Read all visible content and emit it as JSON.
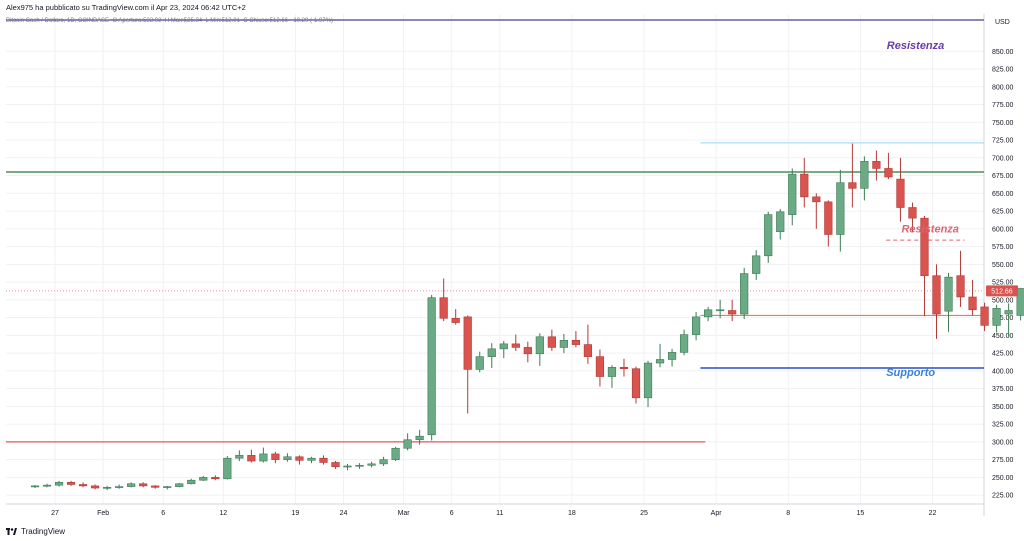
{
  "header": {
    "published": "Alex975 ha pubblicato su TradingView.com il Apr 23, 2024 06:42 UTC+2"
  },
  "symbol_line": {
    "symbol": "Bitcoin Cash / Dollaro, 1D, COINBASE",
    "open": "O Apertura:522.92",
    "high": "H Max:525.34",
    "low": "L Min:512.01",
    "close": "C Chiuso:512.66",
    "change": "-10.29 (-1.97%)"
  },
  "footer": {
    "brand": "TradingView"
  },
  "chart_data": {
    "type": "candlestick",
    "currency": "USD",
    "price_label": "512.66",
    "ylim": [
      212.5,
      902.5
    ],
    "yticks": [
      225,
      250,
      275,
      300,
      325,
      350,
      375,
      400,
      425,
      450,
      475,
      500,
      525,
      550,
      575,
      600,
      625,
      650,
      675,
      700,
      725,
      750,
      775,
      800,
      825,
      850
    ],
    "xticks": [
      "27",
      "Feb",
      "6",
      "12",
      "19",
      "24",
      "Mar",
      "6",
      "11",
      "18",
      "25",
      "Apr",
      "8",
      "15",
      "22"
    ],
    "candles": [
      {
        "o": 237,
        "h": 239,
        "l": 235,
        "c": 238
      },
      {
        "o": 238,
        "h": 241,
        "l": 236,
        "c": 239
      },
      {
        "o": 239,
        "h": 245,
        "l": 237,
        "c": 243
      },
      {
        "o": 243,
        "h": 245,
        "l": 238,
        "c": 240
      },
      {
        "o": 240,
        "h": 243,
        "l": 236,
        "c": 238
      },
      {
        "o": 238,
        "h": 240,
        "l": 233,
        "c": 235
      },
      {
        "o": 235,
        "h": 238,
        "l": 232,
        "c": 236
      },
      {
        "o": 236,
        "h": 240,
        "l": 234,
        "c": 237
      },
      {
        "o": 237,
        "h": 243,
        "l": 236,
        "c": 241
      },
      {
        "o": 241,
        "h": 243,
        "l": 236,
        "c": 238
      },
      {
        "o": 238,
        "h": 239,
        "l": 234,
        "c": 236
      },
      {
        "o": 236,
        "h": 238,
        "l": 233,
        "c": 237
      },
      {
        "o": 237,
        "h": 242,
        "l": 236,
        "c": 241
      },
      {
        "o": 241,
        "h": 248,
        "l": 240,
        "c": 246
      },
      {
        "o": 246,
        "h": 252,
        "l": 245,
        "c": 250
      },
      {
        "o": 250,
        "h": 253,
        "l": 246,
        "c": 248
      },
      {
        "o": 248,
        "h": 280,
        "l": 247,
        "c": 277
      },
      {
        "o": 277,
        "h": 288,
        "l": 273,
        "c": 281
      },
      {
        "o": 281,
        "h": 289,
        "l": 271,
        "c": 273
      },
      {
        "o": 273,
        "h": 292,
        "l": 271,
        "c": 283
      },
      {
        "o": 283,
        "h": 286,
        "l": 270,
        "c": 275
      },
      {
        "o": 275,
        "h": 284,
        "l": 272,
        "c": 279
      },
      {
        "o": 279,
        "h": 281,
        "l": 268,
        "c": 274
      },
      {
        "o": 274,
        "h": 279,
        "l": 270,
        "c": 277
      },
      {
        "o": 277,
        "h": 281,
        "l": 268,
        "c": 271
      },
      {
        "o": 271,
        "h": 273,
        "l": 262,
        "c": 265
      },
      {
        "o": 265,
        "h": 269,
        "l": 260,
        "c": 266
      },
      {
        "o": 266,
        "h": 270,
        "l": 262,
        "c": 267
      },
      {
        "o": 267,
        "h": 272,
        "l": 264,
        "c": 269
      },
      {
        "o": 269,
        "h": 279,
        "l": 266,
        "c": 275
      },
      {
        "o": 275,
        "h": 293,
        "l": 273,
        "c": 291
      },
      {
        "o": 291,
        "h": 312,
        "l": 288,
        "c": 303
      },
      {
        "o": 303,
        "h": 317,
        "l": 296,
        "c": 308
      },
      {
        "o": 310,
        "h": 507,
        "l": 302,
        "c": 503
      },
      {
        "o": 503,
        "h": 530,
        "l": 470,
        "c": 474
      },
      {
        "o": 474,
        "h": 487,
        "l": 465,
        "c": 468
      },
      {
        "o": 476,
        "h": 478,
        "l": 340,
        "c": 402
      },
      {
        "o": 402,
        "h": 427,
        "l": 398,
        "c": 420
      },
      {
        "o": 420,
        "h": 439,
        "l": 404,
        "c": 431
      },
      {
        "o": 431,
        "h": 442,
        "l": 418,
        "c": 438
      },
      {
        "o": 438,
        "h": 451,
        "l": 428,
        "c": 433
      },
      {
        "o": 433,
        "h": 441,
        "l": 412,
        "c": 424
      },
      {
        "o": 424,
        "h": 453,
        "l": 407,
        "c": 448
      },
      {
        "o": 448,
        "h": 458,
        "l": 428,
        "c": 433
      },
      {
        "o": 433,
        "h": 452,
        "l": 425,
        "c": 443
      },
      {
        "o": 443,
        "h": 456,
        "l": 433,
        "c": 437
      },
      {
        "o": 437,
        "h": 465,
        "l": 410,
        "c": 420
      },
      {
        "o": 420,
        "h": 430,
        "l": 378,
        "c": 392
      },
      {
        "o": 392,
        "h": 408,
        "l": 376,
        "c": 405
      },
      {
        "o": 405,
        "h": 417,
        "l": 392,
        "c": 403
      },
      {
        "o": 403,
        "h": 406,
        "l": 354,
        "c": 362
      },
      {
        "o": 362,
        "h": 414,
        "l": 349,
        "c": 411
      },
      {
        "o": 411,
        "h": 438,
        "l": 405,
        "c": 416
      },
      {
        "o": 416,
        "h": 431,
        "l": 406,
        "c": 426
      },
      {
        "o": 426,
        "h": 458,
        "l": 422,
        "c": 451
      },
      {
        "o": 451,
        "h": 483,
        "l": 443,
        "c": 476
      },
      {
        "o": 476,
        "h": 490,
        "l": 470,
        "c": 486
      },
      {
        "o": 486,
        "h": 500,
        "l": 474,
        "c": 486
      },
      {
        "o": 485,
        "h": 500,
        "l": 470,
        "c": 480
      },
      {
        "o": 480,
        "h": 545,
        "l": 473,
        "c": 537
      },
      {
        "o": 537,
        "h": 570,
        "l": 528,
        "c": 562
      },
      {
        "o": 562,
        "h": 624,
        "l": 552,
        "c": 620
      },
      {
        "o": 596,
        "h": 628,
        "l": 585,
        "c": 624
      },
      {
        "o": 620,
        "h": 685,
        "l": 605,
        "c": 677
      },
      {
        "o": 677,
        "h": 700,
        "l": 630,
        "c": 645
      },
      {
        "o": 645,
        "h": 650,
        "l": 600,
        "c": 638
      },
      {
        "o": 638,
        "h": 640,
        "l": 575,
        "c": 592
      },
      {
        "o": 592,
        "h": 683,
        "l": 568,
        "c": 665
      },
      {
        "o": 665,
        "h": 720,
        "l": 630,
        "c": 657
      },
      {
        "o": 657,
        "h": 702,
        "l": 640,
        "c": 695
      },
      {
        "o": 695,
        "h": 710,
        "l": 668,
        "c": 685
      },
      {
        "o": 685,
        "h": 707,
        "l": 670,
        "c": 673
      },
      {
        "o": 670,
        "h": 700,
        "l": 610,
        "c": 630
      },
      {
        "o": 630,
        "h": 637,
        "l": 595,
        "c": 615
      },
      {
        "o": 615,
        "h": 618,
        "l": 477,
        "c": 534
      },
      {
        "o": 534,
        "h": 550,
        "l": 445,
        "c": 480
      },
      {
        "o": 484,
        "h": 538,
        "l": 455,
        "c": 532
      },
      {
        "o": 534,
        "h": 569,
        "l": 490,
        "c": 504
      },
      {
        "o": 504,
        "h": 528,
        "l": 478,
        "c": 486
      },
      {
        "o": 490,
        "h": 496,
        "l": 456,
        "c": 464
      },
      {
        "o": 464,
        "h": 493,
        "l": 454,
        "c": 488
      },
      {
        "o": 480,
        "h": 495,
        "l": 448,
        "c": 485
      },
      {
        "o": 478,
        "h": 517,
        "l": 471,
        "c": 516
      },
      {
        "o": 516,
        "h": 524,
        "l": 499,
        "c": 504
      },
      {
        "o": 502,
        "h": 527,
        "l": 497,
        "c": 523
      },
      {
        "o": 523,
        "h": 525,
        "l": 512,
        "c": 513
      }
    ],
    "levels": [
      {
        "name": "top-purple-line",
        "price": 894,
        "color": "#4a3f8f",
        "width": 1.2,
        "dash": "",
        "from": 0,
        "to": 1
      },
      {
        "name": "light-blue-resistance-line",
        "price": 721,
        "color": "#a7e0f0",
        "width": 1.2,
        "dash": "",
        "from": 0.71,
        "to": 1
      },
      {
        "name": "green-resistance-line",
        "price": 680,
        "color": "#4d8f5a",
        "width": 1.4,
        "dash": "",
        "from": 0,
        "to": 1
      },
      {
        "name": "red-dashed-resistance-line",
        "price": 584,
        "color": "#e06470",
        "width": 1,
        "dash": "4,3",
        "from": 0.9,
        "to": 0.98
      },
      {
        "name": "orange-support-line",
        "price": 478,
        "color": "#f08030",
        "width": 1.2,
        "dash": "",
        "from": 0.71,
        "to": 1
      },
      {
        "name": "blue-support-line",
        "price": 404,
        "color": "#2a4fbf",
        "width": 1.4,
        "dash": "",
        "from": 0.71,
        "to": 1
      },
      {
        "name": "red-support-line",
        "price": 300,
        "color": "#e05a5a",
        "width": 1.2,
        "dash": "",
        "from": 0,
        "to": 0.715
      },
      {
        "name": "price-dotted-line",
        "price": 512.66,
        "color": "#e06470",
        "width": 0.8,
        "dash": "1,2",
        "from": 0,
        "to": 1
      }
    ],
    "annotations": [
      {
        "name": "resistance-label-top",
        "text": "Resistenza",
        "price": 853,
        "pos": 0.93,
        "color": "#6a3da8"
      },
      {
        "name": "resistance-label-mid",
        "text": "Resistenza",
        "price": 595,
        "pos": 0.945,
        "color": "#e06470"
      },
      {
        "name": "support-label",
        "text": "Supporto",
        "price": 393,
        "pos": 0.925,
        "color": "#3a7fd5"
      }
    ],
    "colors": {
      "up": "#6aaa84",
      "down": "#d9534f",
      "up_border": "#3d7b55",
      "down_border": "#b03a36",
      "grid": "#f1f1f3",
      "axis_text": "#131722"
    }
  }
}
